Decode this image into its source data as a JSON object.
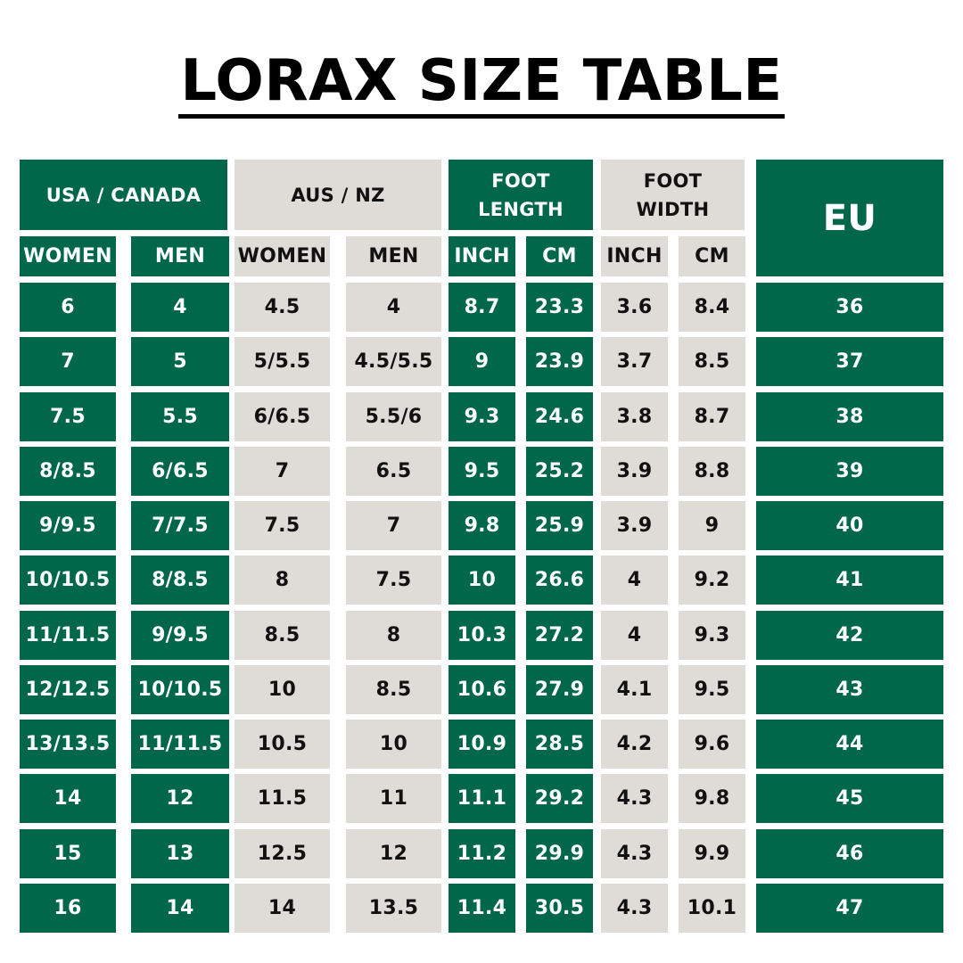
{
  "title": "LORAX SIZE TABLE",
  "colors": {
    "green": "#00674b",
    "light": "#dfdcd7",
    "text_dark": "#111111",
    "text_light": "#ffffff"
  },
  "groups": {
    "usa": "USA / CANADA",
    "aus": "AUS / NZ",
    "foot_length": "FOOT LENGTH",
    "foot_width": "FOOT WIDTH",
    "eu": "EU"
  },
  "subheaders": [
    "WOMEN",
    "MEN",
    "WOMEN",
    "MEN",
    "INCH",
    "CM",
    "INCH",
    "CM"
  ],
  "rows": [
    [
      "6",
      "4",
      "4.5",
      "4",
      "8.7",
      "23.3",
      "3.6",
      "8.4",
      "36"
    ],
    [
      "7",
      "5",
      "5/5.5",
      "4.5/5.5",
      "9",
      "23.9",
      "3.7",
      "8.5",
      "37"
    ],
    [
      "7.5",
      "5.5",
      "6/6.5",
      "5.5/6",
      "9.3",
      "24.6",
      "3.8",
      "8.7",
      "38"
    ],
    [
      "8/8.5",
      "6/6.5",
      "7",
      "6.5",
      "9.5",
      "25.2",
      "3.9",
      "8.8",
      "39"
    ],
    [
      "9/9.5",
      "7/7.5",
      "7.5",
      "7",
      "9.8",
      "25.9",
      "3.9",
      "9",
      "40"
    ],
    [
      "10/10.5",
      "8/8.5",
      "8",
      "7.5",
      "10",
      "26.6",
      "4",
      "9.2",
      "41"
    ],
    [
      "11/11.5",
      "9/9.5",
      "8.5",
      "8",
      "10.3",
      "27.2",
      "4",
      "9.3",
      "42"
    ],
    [
      "12/12.5",
      "10/10.5",
      "10",
      "8.5",
      "10.6",
      "27.9",
      "4.1",
      "9.5",
      "43"
    ],
    [
      "13/13.5",
      "11/11.5",
      "10.5",
      "10",
      "10.9",
      "28.5",
      "4.2",
      "9.6",
      "44"
    ],
    [
      "14",
      "12",
      "11.5",
      "11",
      "11.1",
      "29.2",
      "4.3",
      "9.8",
      "45"
    ],
    [
      "15",
      "13",
      "12.5",
      "12",
      "11.2",
      "29.9",
      "4.3",
      "9.9",
      "46"
    ],
    [
      "16",
      "14",
      "14",
      "13.5",
      "11.4",
      "30.5",
      "4.3",
      "10.1",
      "47"
    ]
  ]
}
